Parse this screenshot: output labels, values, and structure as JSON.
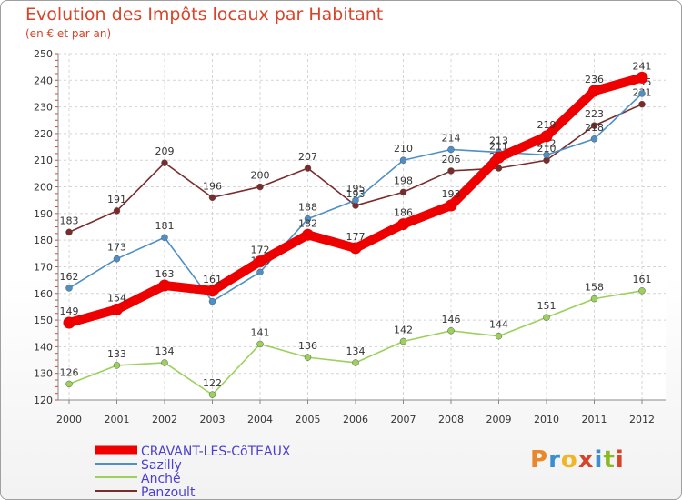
{
  "header": {
    "title": "Evolution des Impôts locaux par Habitant",
    "subtitle": "(en € et par an)"
  },
  "logo": {
    "text": "Proxiti",
    "colors": [
      "#e8882b",
      "#3a8fd0",
      "#f0b623",
      "#d6452a",
      "#3a8fd0",
      "#8ab924",
      "#d6452a"
    ]
  },
  "chart_data": {
    "type": "line",
    "title": "Evolution des Impôts locaux par Habitant",
    "subtitle": "(en € et par an)",
    "xlabel": "",
    "ylabel": "",
    "ylim": [
      120,
      250
    ],
    "yticks": [
      120,
      130,
      140,
      150,
      160,
      170,
      180,
      190,
      200,
      210,
      220,
      230,
      240,
      250
    ],
    "grid": true,
    "legend_position": "bottom-left",
    "categories": [
      "2000",
      "2001",
      "2002",
      "2003",
      "2004",
      "2005",
      "2006",
      "2007",
      "2008",
      "2009",
      "2010",
      "2011",
      "2012"
    ],
    "series": [
      {
        "name": "Panzoult",
        "color": "#7b2b2b",
        "values": [
          183,
          191,
          209,
          196,
          200,
          207,
          193,
          198,
          206,
          207,
          210,
          223,
          231
        ]
      },
      {
        "name": "Sazilly",
        "color": "#4d8fc7",
        "values": [
          162,
          173,
          181,
          157,
          168,
          188,
          195,
          210,
          214,
          213,
          212,
          218,
          235
        ]
      },
      {
        "name": "Anché",
        "color": "#9bd15a",
        "values": [
          126,
          133,
          134,
          122,
          141,
          136,
          134,
          142,
          146,
          144,
          151,
          158,
          161
        ]
      },
      {
        "name": "CRAVANT-LES-CôTEAUX",
        "color": "#ee0000",
        "values": [
          149,
          154,
          163,
          161,
          172,
          182,
          177,
          186,
          193,
          211,
          219,
          236,
          241
        ]
      }
    ],
    "label_values": [
      [
        "183",
        "191",
        "209",
        "196",
        "200",
        "207",
        "193",
        "198",
        "206",
        "207",
        "210",
        "223",
        "231"
      ],
      [
        "162",
        "173",
        "181",
        "157",
        "168",
        "188",
        "195",
        "210",
        "214",
        "213",
        "212",
        "218",
        "235"
      ],
      [
        "126",
        "133",
        "134",
        "122",
        "141",
        "136",
        "134",
        "142",
        "146",
        "144",
        "151",
        "158",
        "161"
      ],
      [
        "149",
        "154",
        "163",
        "161",
        "172",
        "182",
        "177",
        "186",
        "193",
        "211",
        "219",
        "236",
        "241"
      ]
    ],
    "legend": [
      {
        "name": "CRAVANT-LES-CôTEAUX",
        "color": "#ee0000"
      },
      {
        "name": "Sazilly",
        "color": "#4d8fc7"
      },
      {
        "name": "Anché",
        "color": "#9bd15a"
      },
      {
        "name": "Panzoult",
        "color": "#7b2b2b"
      }
    ]
  }
}
